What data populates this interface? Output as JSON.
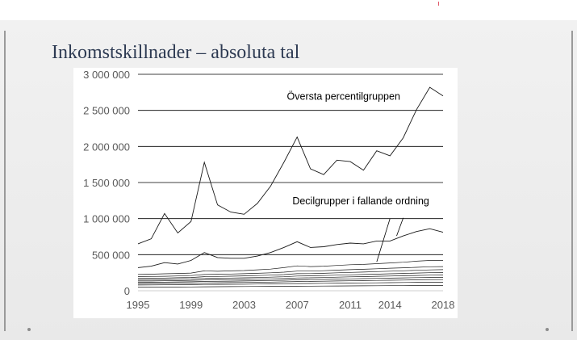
{
  "slide": {
    "title": "Inkomstskillnader – absoluta tal"
  },
  "chart_data": {
    "type": "line",
    "title": "",
    "xlabel": "",
    "ylabel": "",
    "ylim": [
      0,
      3000000
    ],
    "xlim": [
      1995,
      2018
    ],
    "grid": true,
    "y_ticks": [
      0,
      500000,
      1000000,
      1500000,
      2000000,
      2500000,
      3000000
    ],
    "y_tick_labels": [
      "0",
      "500 000",
      "1 000 000",
      "1 500 000",
      "2 000 000",
      "2 500 000",
      "3 000 000"
    ],
    "x_ticks": [
      1995,
      1999,
      2003,
      2007,
      2011,
      2014,
      2018
    ],
    "x_tick_labels": [
      "1995",
      "1999",
      "2003",
      "2007",
      "2011",
      "2014",
      "2018"
    ],
    "x": [
      1995,
      1996,
      1997,
      1998,
      1999,
      2000,
      2001,
      2002,
      2003,
      2004,
      2005,
      2006,
      2007,
      2008,
      2009,
      2010,
      2011,
      2012,
      2013,
      2014,
      2015,
      2016,
      2017,
      2018
    ],
    "series": [
      {
        "values": [
          650000,
          720000,
          1070000,
          800000,
          960000,
          1780000,
          1190000,
          1090000,
          1060000,
          1210000,
          1450000,
          1780000,
          2130000,
          1690000,
          1610000,
          1810000,
          1790000,
          1670000,
          1940000,
          1870000,
          2120000,
          2510000,
          2820000,
          2700000
        ]
      },
      {
        "values": [
          320000,
          340000,
          390000,
          370000,
          420000,
          530000,
          460000,
          450000,
          450000,
          480000,
          530000,
          600000,
          680000,
          600000,
          610000,
          640000,
          660000,
          650000,
          690000,
          690000,
          760000,
          820000,
          860000,
          810000
        ]
      },
      {
        "values": [
          225000,
          230000,
          235000,
          240000,
          245000,
          275000,
          270000,
          275000,
          280000,
          290000,
          300000,
          320000,
          345000,
          335000,
          340000,
          350000,
          360000,
          365000,
          375000,
          385000,
          395000,
          410000,
          420000,
          420000
        ]
      },
      {
        "values": [
          195000,
          198000,
          200000,
          205000,
          210000,
          225000,
          228000,
          232000,
          236000,
          242000,
          248000,
          258000,
          272000,
          272000,
          278000,
          286000,
          292000,
          298000,
          305000,
          312000,
          318000,
          325000,
          332000,
          335000
        ]
      },
      {
        "values": [
          172000,
          174000,
          176000,
          180000,
          184000,
          195000,
          198000,
          202000,
          206000,
          211000,
          216000,
          224000,
          236000,
          237000,
          242000,
          249000,
          254000,
          259000,
          265000,
          271000,
          277000,
          283000,
          289000,
          292000
        ]
      },
      {
        "values": [
          153000,
          154000,
          156000,
          159000,
          162000,
          170000,
          173000,
          176000,
          179000,
          183000,
          188000,
          194000,
          204000,
          206000,
          210000,
          216000,
          221000,
          225000,
          230000,
          235000,
          240000,
          245000,
          250000,
          253000
        ]
      },
      {
        "values": [
          135000,
          136000,
          138000,
          140000,
          143000,
          149000,
          151000,
          154000,
          157000,
          160000,
          164000,
          169000,
          177000,
          179000,
          183000,
          188000,
          192000,
          196000,
          200000,
          204000,
          208000,
          212000,
          216000,
          219000
        ]
      },
      {
        "values": [
          118000,
          119000,
          120000,
          122000,
          124000,
          129000,
          131000,
          133000,
          136000,
          139000,
          142000,
          146000,
          152000,
          154000,
          157000,
          161000,
          165000,
          168000,
          171000,
          175000,
          178000,
          181000,
          184000,
          186000
        ]
      },
      {
        "values": [
          100000,
          101000,
          102000,
          104000,
          105000,
          109000,
          111000,
          113000,
          115000,
          117000,
          120000,
          123000,
          128000,
          130000,
          132000,
          135000,
          138000,
          141000,
          143000,
          146000,
          148000,
          151000,
          153000,
          155000
        ]
      },
      {
        "values": [
          80000,
          81000,
          82000,
          83000,
          84000,
          87000,
          88000,
          90000,
          91000,
          93000,
          95000,
          97000,
          100000,
          101000,
          103000,
          105000,
          107000,
          109000,
          110000,
          112000,
          114000,
          116000,
          117000,
          118000
        ]
      },
      {
        "values": [
          50000,
          51000,
          52000,
          52000,
          53000,
          55000,
          56000,
          57000,
          58000,
          59000,
          60000,
          61000,
          63000,
          64000,
          65000,
          66000,
          67000,
          68000,
          69000,
          70000,
          71000,
          72000,
          73000,
          74000
        ]
      }
    ],
    "annotations": [
      {
        "text": "Översta percentilgruppen",
        "x": 2010.5,
        "y": 2650000,
        "line_to": null
      },
      {
        "text": "Decilgrupper i fallande ordning",
        "x": 2011.8,
        "y": 1200000,
        "line_to": [
          [
            2015,
            1010000,
            2014.5,
            760000
          ],
          [
            2014,
            1000000,
            2013,
            400000
          ]
        ]
      }
    ],
    "colors": {
      "line": "#1a1a1a",
      "grid": "#000000",
      "axis_text": "#595959"
    }
  }
}
